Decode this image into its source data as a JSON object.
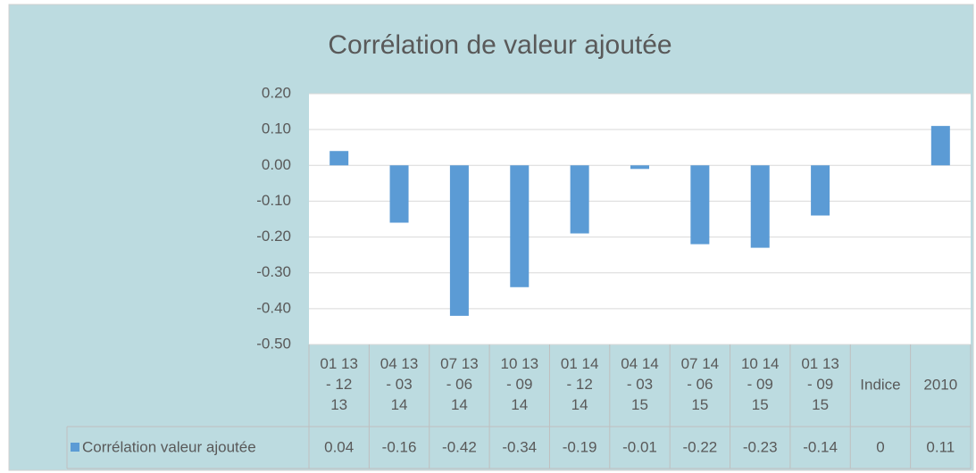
{
  "chart_data": {
    "type": "bar",
    "title": "Corrélation de valeur ajoutée",
    "categories": [
      "01 13 - 12 13",
      "04 13 - 03 14",
      "07 13 - 06 14",
      "10 13 - 09 14",
      "01 14 - 12 14",
      "04 14 - 03 15",
      "07 14 - 06 15",
      "10 14 - 09 15",
      "01 13 - 09 15",
      "Indice",
      "2010"
    ],
    "series": [
      {
        "name": "Corrélation valeur ajoutée",
        "color": "#5b9bd5",
        "values": [
          0.04,
          -0.16,
          -0.42,
          -0.34,
          -0.19,
          -0.01,
          -0.22,
          -0.23,
          -0.14,
          0,
          0.11
        ]
      }
    ],
    "ylim": [
      -0.5,
      0.2
    ],
    "yticks": [
      {
        "value": 0.2,
        "label": "0.20"
      },
      {
        "value": 0.1,
        "label": "0.10"
      },
      {
        "value": 0,
        "label": "0.00"
      },
      {
        "value": -0.1,
        "label": "-0.10"
      },
      {
        "value": -0.2,
        "label": "-0.20"
      },
      {
        "value": -0.3,
        "label": "-0.30"
      },
      {
        "value": -0.4,
        "label": "-0.40"
      },
      {
        "value": -0.5,
        "label": "-0.50"
      }
    ],
    "grid": true
  }
}
